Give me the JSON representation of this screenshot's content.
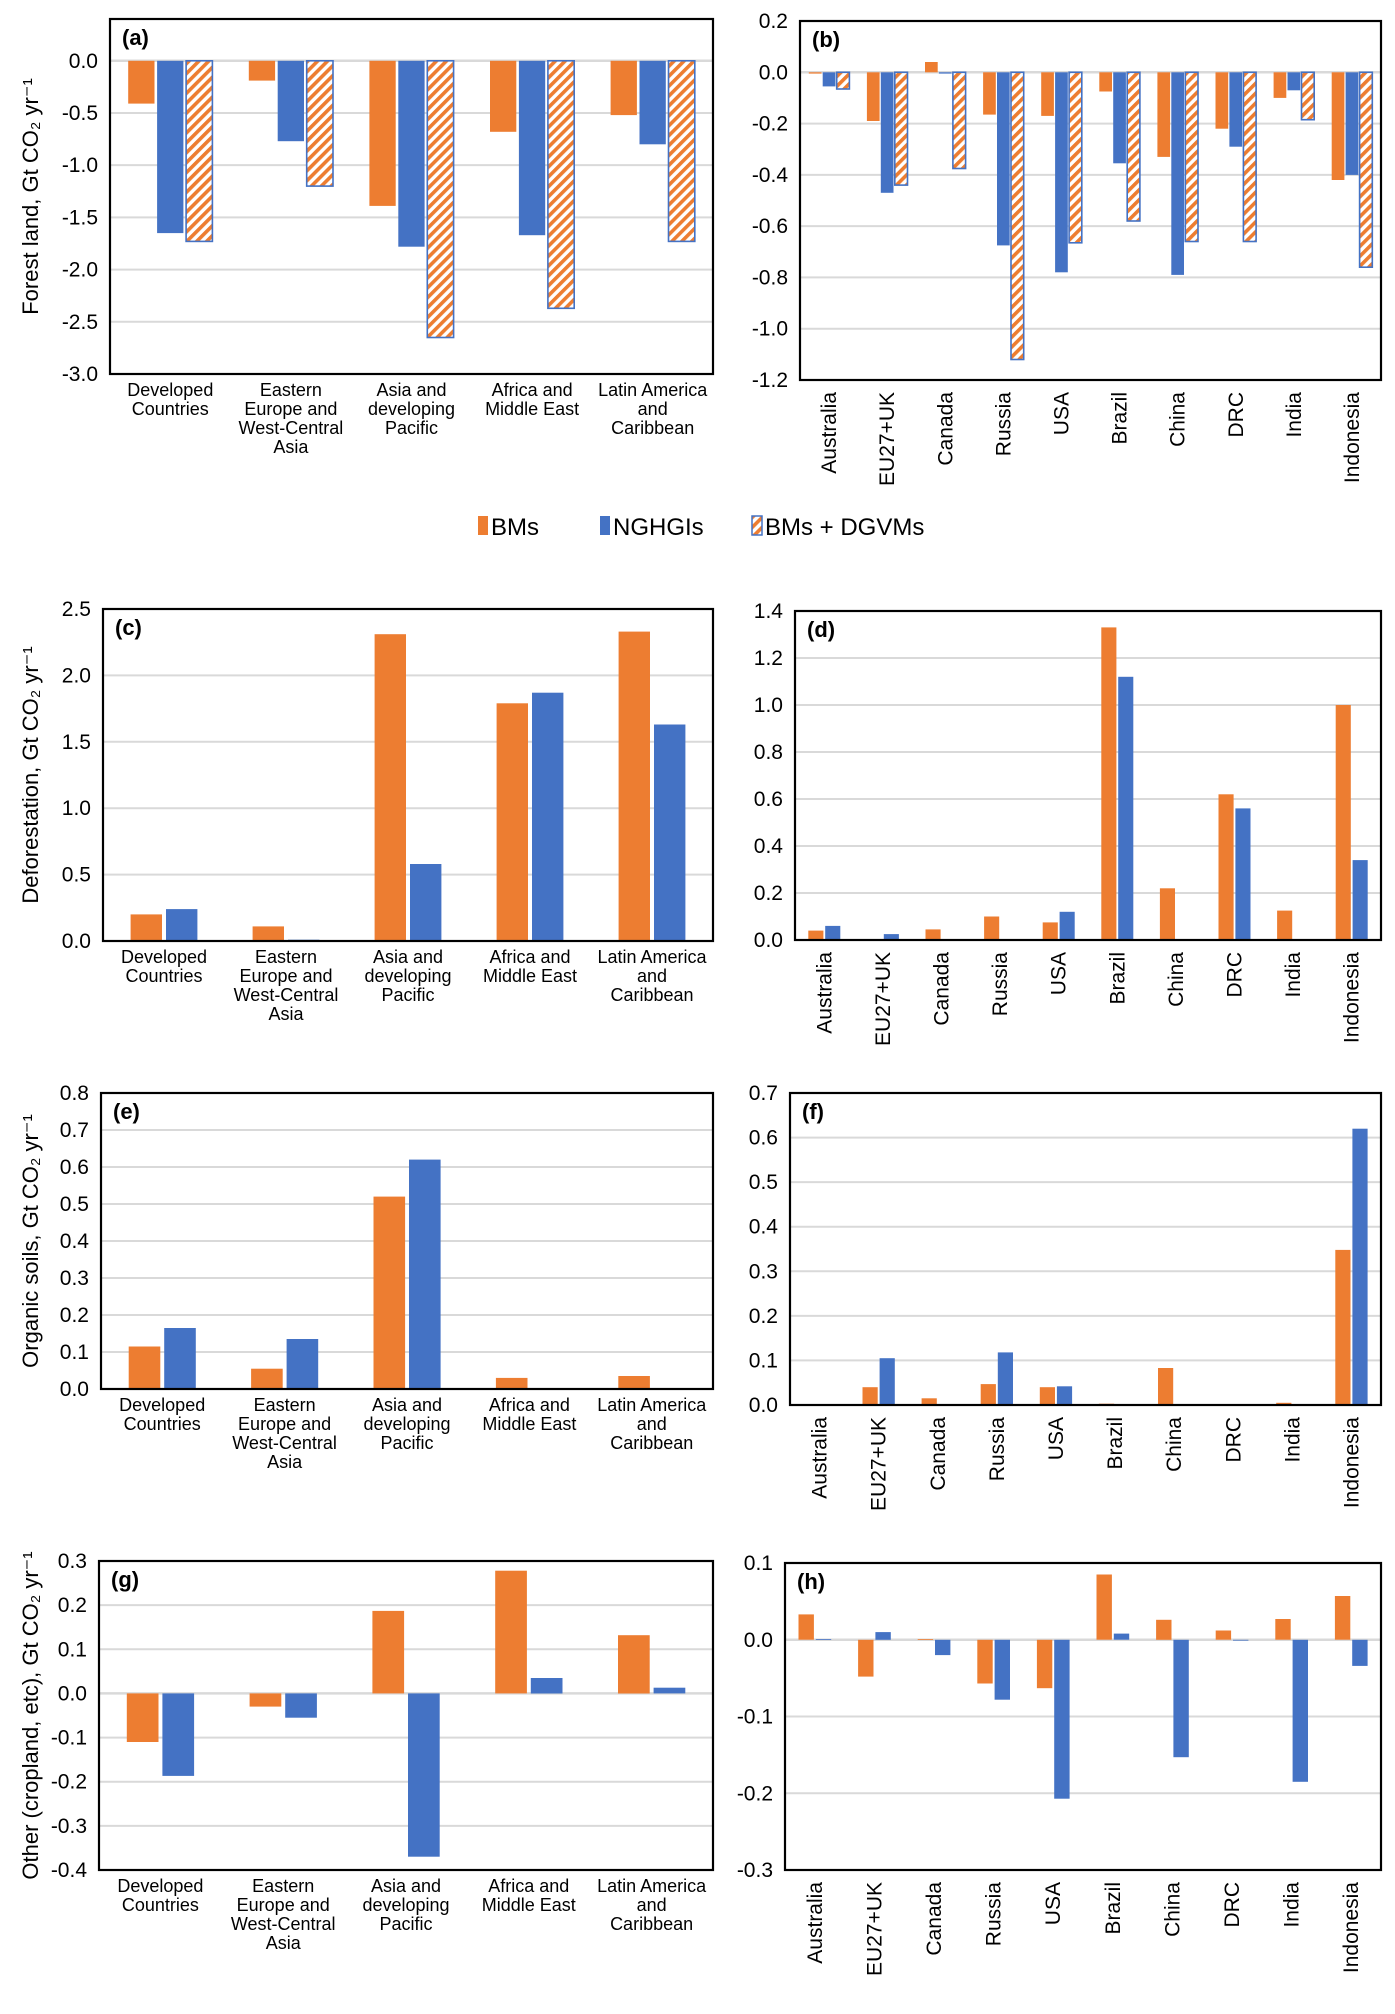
{
  "legend": {
    "position": "center",
    "items": [
      {
        "name": "BMs",
        "color": "#ED7D31",
        "pattern": "solid"
      },
      {
        "name": "NGHGIs",
        "color": "#4472C4",
        "pattern": "solid"
      },
      {
        "name": "BMs + DGVMs",
        "color": "#ED7D31",
        "pattern": "hatched",
        "border": "#4472C4"
      }
    ]
  },
  "chart_data": [
    {
      "id": "a",
      "type": "bar",
      "panel_label": "(a)",
      "ylabel": "Forest land, Gt CO₂ yr⁻¹",
      "ylim": [
        -3.0,
        0.4
      ],
      "yticks": [
        0.0,
        -0.5,
        -1.0,
        -1.5,
        -2.0,
        -2.5,
        -3.0
      ],
      "tick_format": 1,
      "grid": true,
      "xlabel_orientation": "horizontal",
      "categories": [
        "Developed Countries",
        "Eastern Europe and West-Central Asia",
        "Asia and developing Pacific",
        "Africa and Middle East",
        "Latin America and Caribbean"
      ],
      "category_lines": [
        [
          "Developed",
          "Countries"
        ],
        [
          "Eastern",
          "Europe and",
          "West-Central",
          "Asia"
        ],
        [
          "Asia and",
          "developing",
          "Pacific"
        ],
        [
          "Africa and",
          "Middle East"
        ],
        [
          "Latin America",
          "and",
          "Caribbean"
        ]
      ],
      "series": [
        {
          "name": "BMs",
          "values": [
            -0.41,
            -0.19,
            -1.39,
            -0.68,
            -0.52
          ]
        },
        {
          "name": "NGHGIs",
          "values": [
            -1.65,
            -0.77,
            -1.78,
            -1.67,
            -0.8
          ]
        },
        {
          "name": "BMs + DGVMs",
          "values": [
            -1.73,
            -1.2,
            -2.65,
            -2.37,
            -1.73
          ]
        }
      ]
    },
    {
      "id": "b",
      "type": "bar",
      "panel_label": "(b)",
      "ylabel": "",
      "ylim": [
        -1.2,
        0.2
      ],
      "yticks": [
        0.2,
        0.0,
        -0.2,
        -0.4,
        -0.6,
        -0.8,
        -1.0,
        -1.2
      ],
      "tick_format": 1,
      "grid": true,
      "xlabel_orientation": "vertical",
      "categories": [
        "Australia",
        "EU27+UK",
        "Canada",
        "Russia",
        "USA",
        "Brazil",
        "China",
        "DRC",
        "India",
        "Indonesia"
      ],
      "series": [
        {
          "name": "BMs",
          "values": [
            -0.005,
            -0.19,
            0.04,
            -0.165,
            -0.17,
            -0.075,
            -0.33,
            -0.22,
            -0.1,
            -0.42
          ]
        },
        {
          "name": "NGHGIs",
          "values": [
            -0.055,
            -0.47,
            -0.005,
            -0.675,
            -0.78,
            -0.355,
            -0.79,
            -0.29,
            -0.07,
            -0.4
          ]
        },
        {
          "name": "BMs + DGVMs",
          "values": [
            -0.065,
            -0.44,
            -0.375,
            -1.12,
            -0.665,
            -0.58,
            -0.66,
            -0.66,
            -0.185,
            -0.76
          ]
        }
      ]
    },
    {
      "id": "c",
      "type": "bar",
      "panel_label": "(c)",
      "ylabel": "Deforestation, Gt CO₂ yr⁻¹",
      "ylim": [
        0.0,
        2.5
      ],
      "yticks": [
        0.0,
        0.5,
        1.0,
        1.5,
        2.0,
        2.5
      ],
      "tick_format": 1,
      "grid": true,
      "xlabel_orientation": "horizontal",
      "categories": [
        "Developed Countries",
        "Eastern Europe and West-Central Asia",
        "Asia and developing Pacific",
        "Africa and Middle East",
        "Latin America and Caribbean"
      ],
      "category_lines": [
        [
          "Developed",
          "Countries"
        ],
        [
          "Eastern",
          "Europe and",
          "West-Central",
          "Asia"
        ],
        [
          "Asia and",
          "developing",
          "Pacific"
        ],
        [
          "Africa and",
          "Middle East"
        ],
        [
          "Latin America",
          "and",
          "Caribbean"
        ]
      ],
      "series": [
        {
          "name": "BMs",
          "values": [
            0.2,
            0.11,
            2.31,
            1.79,
            2.33
          ]
        },
        {
          "name": "NGHGIs",
          "values": [
            0.24,
            0.01,
            0.58,
            1.87,
            1.63
          ]
        }
      ]
    },
    {
      "id": "d",
      "type": "bar",
      "panel_label": "(d)",
      "ylabel": "",
      "ylim": [
        0.0,
        1.4
      ],
      "yticks": [
        0.0,
        0.2,
        0.4,
        0.6,
        0.8,
        1.0,
        1.2,
        1.4
      ],
      "tick_format": 1,
      "grid": true,
      "xlabel_orientation": "vertical",
      "categories": [
        "Australia",
        "EU27+UK",
        "Canada",
        "Russia",
        "USA",
        "Brazil",
        "China",
        "DRC",
        "India",
        "Indonesia"
      ],
      "series": [
        {
          "name": "BMs",
          "values": [
            0.04,
            0.002,
            0.045,
            0.1,
            0.075,
            1.33,
            0.22,
            0.62,
            0.125,
            1.0
          ]
        },
        {
          "name": "NGHGIs",
          "values": [
            0.06,
            0.025,
            0.002,
            0.002,
            0.12,
            1.12,
            0.0,
            0.56,
            0.0,
            0.34
          ]
        }
      ]
    },
    {
      "id": "e",
      "type": "bar",
      "panel_label": "(e)",
      "ylabel": "Organic soils, Gt CO₂ yr⁻¹",
      "ylim": [
        0.0,
        0.8
      ],
      "yticks": [
        0.0,
        0.1,
        0.2,
        0.3,
        0.4,
        0.5,
        0.6,
        0.7,
        0.8
      ],
      "tick_format": 1,
      "grid": true,
      "xlabel_orientation": "horizontal",
      "categories": [
        "Developed Countries",
        "Eastern Europe and West-Central Asia",
        "Asia and developing Pacific",
        "Africa and Middle East",
        "Latin America and Caribbean"
      ],
      "category_lines": [
        [
          "Developed",
          "Countries"
        ],
        [
          "Eastern",
          "Europe and",
          "West-Central",
          "Asia"
        ],
        [
          "Asia and",
          "developing",
          "Pacific"
        ],
        [
          "Africa and",
          "Middle East"
        ],
        [
          "Latin America",
          "and",
          "Caribbean"
        ]
      ],
      "series": [
        {
          "name": "BMs",
          "values": [
            0.115,
            0.055,
            0.52,
            0.03,
            0.035
          ]
        },
        {
          "name": "NGHGIs",
          "values": [
            0.165,
            0.135,
            0.62,
            0.0,
            0.0
          ]
        }
      ]
    },
    {
      "id": "f",
      "type": "bar",
      "panel_label": "(f)",
      "ylabel": "",
      "ylim": [
        0.0,
        0.7
      ],
      "yticks": [
        0.0,
        0.1,
        0.2,
        0.3,
        0.4,
        0.5,
        0.6,
        0.7
      ],
      "tick_format": 1,
      "grid": true,
      "xlabel_orientation": "vertical",
      "categories": [
        "Australia",
        "EU27+UK",
        "Canada",
        "Russia",
        "USA",
        "Brazil",
        "China",
        "DRC",
        "India",
        "Indonesia"
      ],
      "series": [
        {
          "name": "BMs",
          "values": [
            0.001,
            0.04,
            0.015,
            0.047,
            0.04,
            0.003,
            0.083,
            0.001,
            0.005,
            0.348
          ]
        },
        {
          "name": "NGHGIs",
          "values": [
            0.001,
            0.105,
            0.001,
            0.118,
            0.042,
            0.0,
            0.0,
            0.0,
            0.0,
            0.62
          ]
        }
      ]
    },
    {
      "id": "g",
      "type": "bar",
      "panel_label": "(g)",
      "ylabel": "Other (cropland, etc), Gt CO₂ yr⁻¹",
      "ylim": [
        -0.4,
        0.3
      ],
      "yticks": [
        0.3,
        0.2,
        0.1,
        0.0,
        -0.1,
        -0.2,
        -0.3,
        -0.4
      ],
      "tick_format": 1,
      "grid": true,
      "xlabel_orientation": "horizontal",
      "categories": [
        "Developed Countries",
        "Eastern Europe and West-Central Asia",
        "Asia and developing Pacific",
        "Africa and Middle East",
        "Latin America and Caribbean"
      ],
      "category_lines": [
        [
          "Developed",
          "Countries"
        ],
        [
          "Eastern",
          "Europe and",
          "West-Central",
          "Asia"
        ],
        [
          "Asia and",
          "developing",
          "Pacific"
        ],
        [
          "Africa and",
          "Middle East"
        ],
        [
          "Latin America",
          "and",
          "Caribbean"
        ]
      ],
      "series": [
        {
          "name": "BMs",
          "values": [
            -0.11,
            -0.03,
            0.187,
            0.278,
            0.132
          ]
        },
        {
          "name": "NGHGIs",
          "values": [
            -0.187,
            -0.055,
            -0.37,
            0.035,
            0.013
          ]
        }
      ]
    },
    {
      "id": "h",
      "type": "bar",
      "panel_label": "(h)",
      "ylabel": "",
      "ylim": [
        -0.3,
        0.1
      ],
      "yticks": [
        0.1,
        0.0,
        -0.1,
        -0.2,
        -0.3
      ],
      "tick_format": 1,
      "grid": true,
      "xlabel_orientation": "vertical",
      "categories": [
        "Australia",
        "EU27+UK",
        "Canada",
        "Russia",
        "USA",
        "Brazil",
        "China",
        "DRC",
        "India",
        "Indonesia"
      ],
      "series": [
        {
          "name": "BMs",
          "values": [
            0.033,
            -0.048,
            0.001,
            -0.057,
            -0.063,
            0.085,
            0.026,
            0.012,
            0.027,
            0.057
          ]
        },
        {
          "name": "NGHGIs",
          "values": [
            0.001,
            0.01,
            -0.02,
            -0.078,
            -0.207,
            0.008,
            -0.153,
            0.0,
            -0.185,
            -0.034
          ]
        }
      ]
    }
  ]
}
